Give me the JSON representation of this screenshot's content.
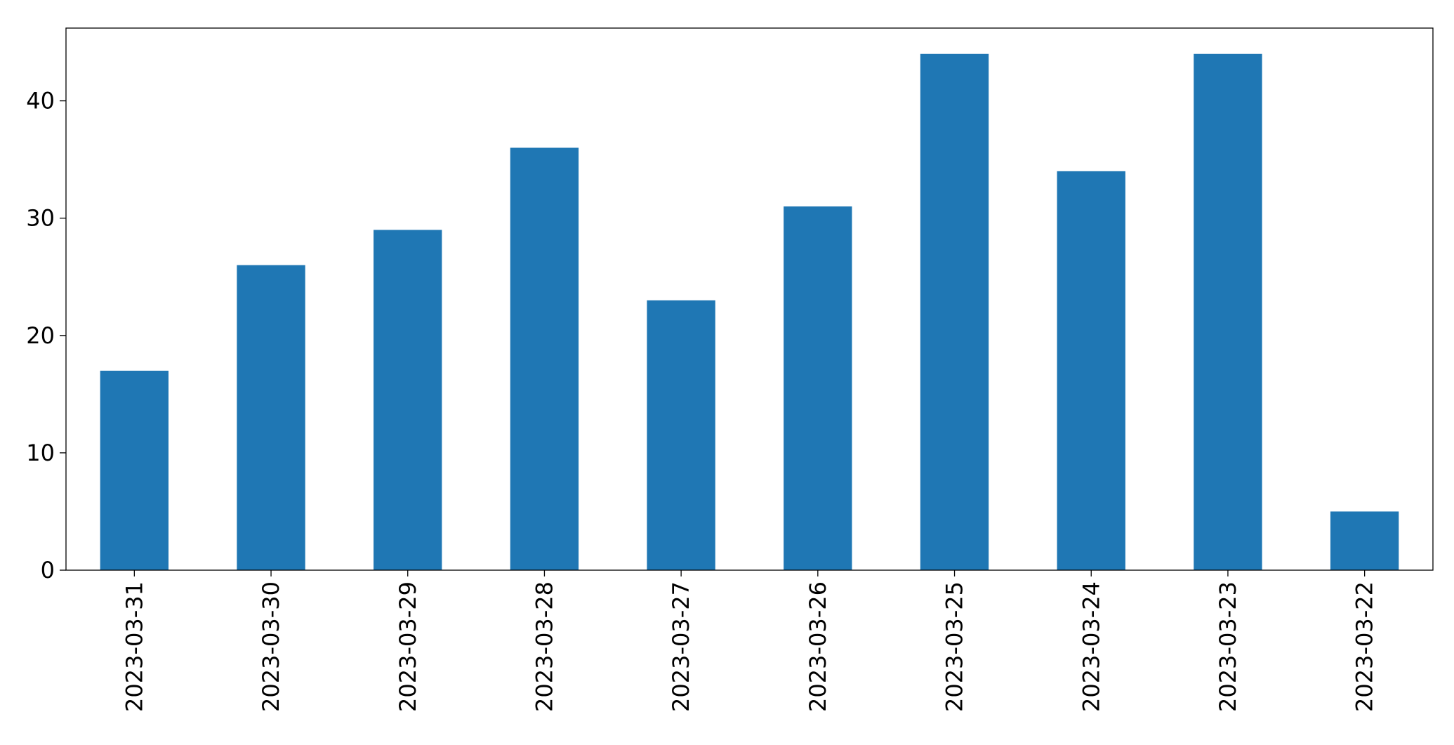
{
  "chart_data": {
    "type": "bar",
    "categories": [
      "2023-03-31",
      "2023-03-30",
      "2023-03-29",
      "2023-03-28",
      "2023-03-27",
      "2023-03-26",
      "2023-03-25",
      "2023-03-24",
      "2023-03-23",
      "2023-03-22"
    ],
    "values": [
      17,
      26,
      29,
      36,
      23,
      31,
      44,
      34,
      44,
      5
    ],
    "color": "#1f77b4",
    "ylim": [
      0,
      46.2
    ],
    "yticks": [
      0,
      10,
      20,
      30,
      40
    ],
    "grid": false
  }
}
